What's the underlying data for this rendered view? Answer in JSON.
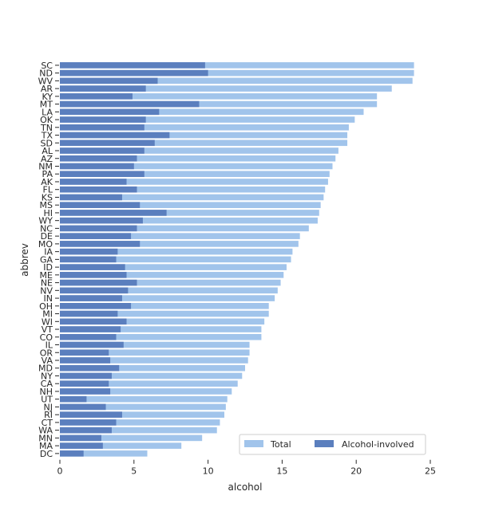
{
  "chart_data": {
    "type": "bar",
    "orientation": "horizontal",
    "xlabel": "alcohol",
    "ylabel": "abbrev",
    "xlim": [
      0,
      25
    ],
    "xticks": [
      0,
      5,
      10,
      15,
      20,
      25
    ],
    "grid": false,
    "legend_position": "lower-right",
    "categories": [
      "SC",
      "ND",
      "WV",
      "AR",
      "KY",
      "MT",
      "LA",
      "OK",
      "TN",
      "TX",
      "SD",
      "AL",
      "AZ",
      "NM",
      "PA",
      "AK",
      "FL",
      "KS",
      "MS",
      "HI",
      "WY",
      "NC",
      "DE",
      "MO",
      "IA",
      "GA",
      "ID",
      "ME",
      "NE",
      "NV",
      "IN",
      "OH",
      "MI",
      "WI",
      "VT",
      "CO",
      "IL",
      "OR",
      "VA",
      "MD",
      "NY",
      "CA",
      "NH",
      "UT",
      "NJ",
      "RI",
      "CT",
      "WA",
      "MN",
      "MA",
      "DC"
    ],
    "series": [
      {
        "name": "Total",
        "color": "#a1c4eb",
        "values": [
          23.9,
          23.9,
          23.8,
          22.4,
          21.4,
          21.4,
          20.5,
          19.9,
          19.5,
          19.4,
          19.4,
          18.8,
          18.6,
          18.4,
          18.2,
          18.1,
          17.9,
          17.8,
          17.6,
          17.5,
          17.4,
          16.8,
          16.2,
          16.1,
          15.7,
          15.6,
          15.3,
          15.1,
          14.9,
          14.7,
          14.5,
          14.1,
          14.1,
          13.8,
          13.6,
          13.6,
          12.8,
          12.8,
          12.7,
          12.5,
          12.3,
          12.0,
          11.6,
          11.3,
          11.2,
          11.1,
          10.8,
          10.6,
          9.6,
          8.2,
          5.9
        ]
      },
      {
        "name": "Alcohol-involved",
        "color": "#5b7fbe",
        "values": [
          9.8,
          10.0,
          6.6,
          5.8,
          4.9,
          9.4,
          6.7,
          5.8,
          5.7,
          7.4,
          6.4,
          5.7,
          5.2,
          5.0,
          5.7,
          4.5,
          5.2,
          4.2,
          5.4,
          7.2,
          5.6,
          5.2,
          4.8,
          5.4,
          3.9,
          3.8,
          4.4,
          4.5,
          5.2,
          4.6,
          4.2,
          4.8,
          3.9,
          4.5,
          4.1,
          3.8,
          4.3,
          3.3,
          3.4,
          4.0,
          3.5,
          3.3,
          3.4,
          1.8,
          3.1,
          4.2,
          3.8,
          3.5,
          2.8,
          2.9,
          1.6
        ]
      }
    ]
  }
}
